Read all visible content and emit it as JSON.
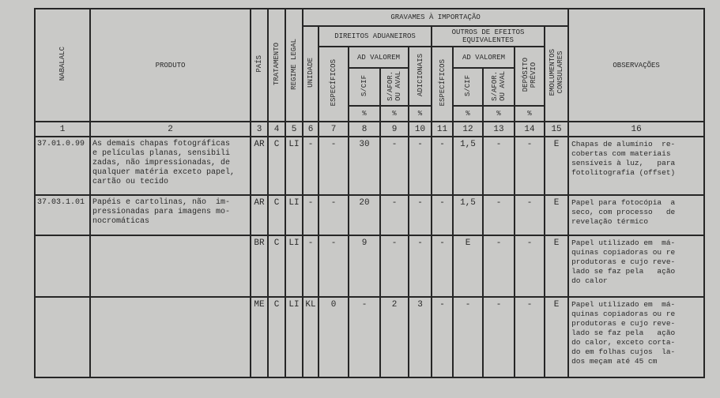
{
  "headers": {
    "nabalalc": "NABALALC",
    "produto": "PRODUTO",
    "pais": "PAÍS",
    "tratamento": "TRATAMENTO",
    "regime": "REGIME LEGAL",
    "unidade": "UNIDADE",
    "gravames": "GRAVAMES À IMPORTAÇÃO",
    "direitos": "DIREITOS ADUANEIROS",
    "outros": "OUTROS DE EFEITOS\nEQUIVALENTES",
    "especificos": "ESPECÍFICOS",
    "ad_valorem": "AD VALOREM",
    "s_cif": "S/CIF",
    "s_afor": "S/AFOR.\nOU AVAL",
    "adicionais": "ADICIONAIS",
    "deposito": "DEPÓSITO\nPRÉVIO",
    "emolumentos": "EMOLUMENTOS\nCONSULARES",
    "observacoes": "OBSERVAÇÕES",
    "pct": "%"
  },
  "column_numbers": [
    "1",
    "2",
    "3",
    "4",
    "5",
    "6",
    "7",
    "8",
    "9",
    "10",
    "11",
    "12",
    "13",
    "14",
    "15",
    "16"
  ],
  "rows": [
    {
      "cells": [
        "37.01.0.99",
        "As demais chapas fotográficas\ne películas planas, sensibili\nzadas, não impressionadas, de\nqualquer matéria exceto papel,\ncartão ou tecido",
        "AR",
        "C",
        "LI",
        "-",
        "-",
        "30",
        "-",
        "-",
        "-",
        "1,5",
        "-",
        "-",
        "E",
        "Chapas de alumínio  re-\ncobertas com materiais\nsensíveis à luz,   para\nfotolitografia (offset)"
      ]
    },
    {
      "cells": [
        "37.03.1.01",
        "Papéis e cartolinas, não  im-\npressionadas para imagens mo-\nnocromáticas",
        "AR",
        "C",
        "LI",
        "-",
        "-",
        "20",
        "-",
        "-",
        "-",
        "1,5",
        "-",
        "-",
        "E",
        "Papel para fotocópia  a\nseco, com processo   de\nrevelação térmico"
      ]
    },
    {
      "cells": [
        "",
        "",
        "BR",
        "C",
        "LI",
        "-",
        "-",
        "9",
        "-",
        "-",
        "-",
        "E",
        "-",
        "-",
        "E",
        "Papel utilizado em  má-\nquinas copiadoras ou re\nprodutoras e cujo reve-\nlado se faz pela   ação\ndo calor"
      ]
    },
    {
      "cells": [
        "",
        "",
        "ME",
        "C",
        "LI",
        "KL",
        "0",
        "-",
        "2",
        "3",
        "-",
        "-",
        "-",
        "-",
        "E",
        "Papel utilizado em  má-\nquinas copiadoras ou re\nprodutoras e cujo reve-\nlado se faz pela   ação\ndo calor, exceto corta-\ndo em folhas cujos  la-\ndos meçam até 45 cm"
      ]
    }
  ]
}
